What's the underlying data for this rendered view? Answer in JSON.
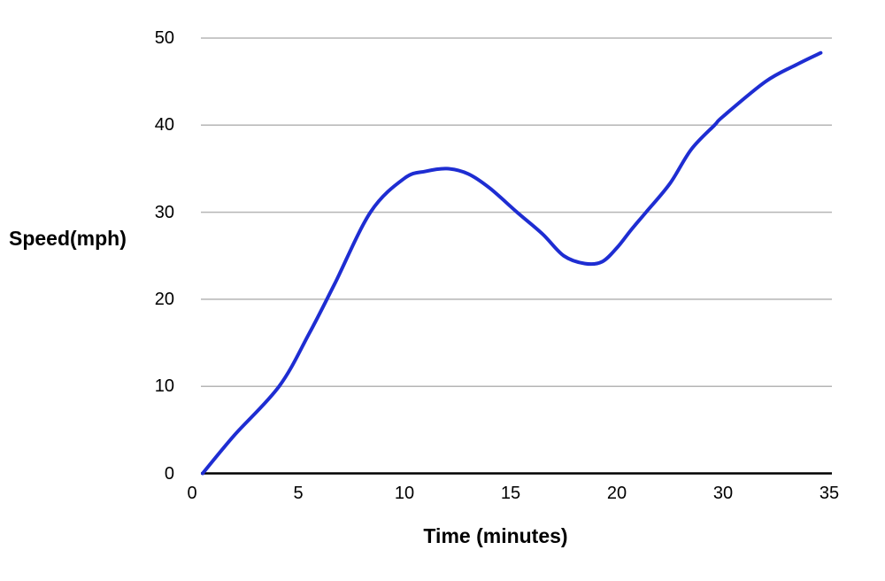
{
  "page": {
    "background": "#ffffff"
  },
  "colors": {
    "curve": "#1e2dd2",
    "gridline": "#b5b5b5",
    "axis_line": "#000000",
    "text": "#000000"
  },
  "chart_data": {
    "type": "line",
    "title": "",
    "xlabel": "Time (minutes)",
    "ylabel": "Speed(mph)",
    "x_ticks": [
      0,
      5,
      10,
      15,
      20,
      30,
      35
    ],
    "y_ticks": [
      0,
      10,
      20,
      30,
      40,
      50
    ],
    "ylim": [
      0,
      50
    ],
    "grid": "horizontal-only",
    "legend": "none",
    "series": [
      {
        "name": "speed",
        "color": "#1e2dd2",
        "points": [
          [
            0.5,
            0
          ],
          [
            2,
            4.4
          ],
          [
            4.1,
            10
          ],
          [
            5.5,
            16
          ],
          [
            6.7,
            21.7
          ],
          [
            8.4,
            30
          ],
          [
            10,
            33.9
          ],
          [
            11,
            34.7
          ],
          [
            12,
            35
          ],
          [
            13,
            34.4
          ],
          [
            14,
            32.8
          ],
          [
            15.3,
            30
          ],
          [
            16.5,
            27.5
          ],
          [
            17.5,
            25
          ],
          [
            18.5,
            24.1
          ],
          [
            19.3,
            24.3
          ],
          [
            20,
            25.9
          ],
          [
            21.3,
            27.9
          ],
          [
            22.75,
            30
          ],
          [
            25,
            33.3
          ],
          [
            27,
            37.2
          ],
          [
            29.2,
            40
          ],
          [
            30,
            41
          ],
          [
            32,
            45
          ],
          [
            33.5,
            47
          ],
          [
            34.6,
            48.3
          ]
        ]
      }
    ]
  }
}
